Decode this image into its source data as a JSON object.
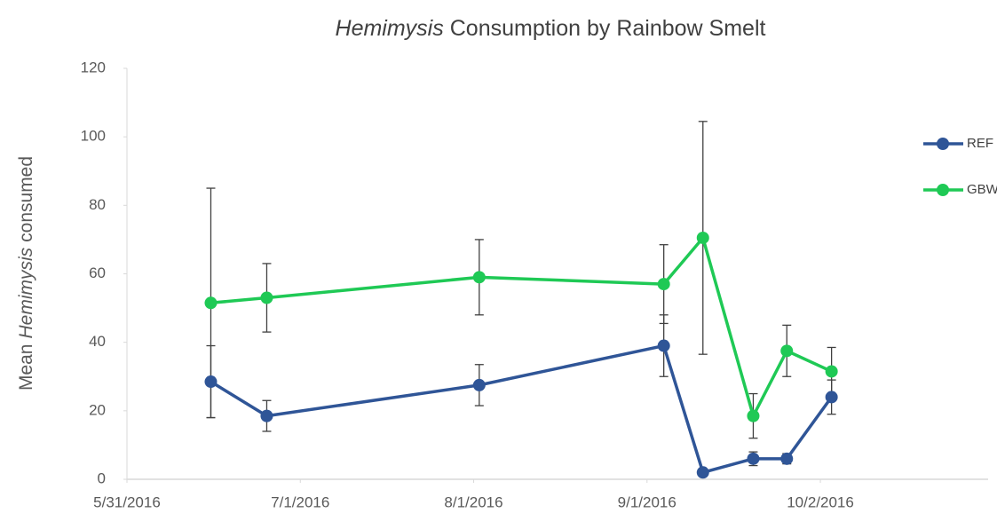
{
  "chart_data": {
    "type": "line",
    "title": [
      "Hemimysis",
      "Consumption by Rainbow Smelt"
    ],
    "y_label": [
      "Mean",
      "Hemimysis",
      "consumed"
    ],
    "x": [
      "2016-06-15",
      "2016-06-25",
      "2016-08-02",
      "2016-09-04",
      "2016-09-11",
      "2016-09-20",
      "2016-09-26",
      "2016-10-04"
    ],
    "series": [
      {
        "name": "REF",
        "color": "#2f5597",
        "values": [
          28.5,
          18.5,
          27.5,
          39,
          2,
          6,
          6,
          24
        ],
        "errors": [
          10.5,
          4.5,
          6,
          9,
          0.5,
          2,
          1.5,
          5
        ]
      },
      {
        "name": "GBW",
        "color": "#1fc955",
        "values": [
          51.5,
          53,
          59,
          57,
          70.5,
          18.5,
          37.5,
          31.5
        ],
        "errors": [
          33.5,
          10,
          11,
          11.5,
          34,
          6.5,
          7.5,
          7
        ]
      }
    ],
    "xlim": [
      "2016-05-31",
      "2016-11-01"
    ],
    "xticks": [
      {
        "value": "2016-05-31",
        "label": "5/31/2016"
      },
      {
        "value": "2016-07-01",
        "label": "7/1/2016"
      },
      {
        "value": "2016-08-01",
        "label": "8/1/2016"
      },
      {
        "value": "2016-09-01",
        "label": "9/1/2016"
      },
      {
        "value": "2016-10-02",
        "label": "10/2/2016"
      }
    ],
    "ylim": [
      0,
      120
    ],
    "yticks": [
      0,
      20,
      40,
      60,
      80,
      100,
      120
    ],
    "legend": "right"
  }
}
